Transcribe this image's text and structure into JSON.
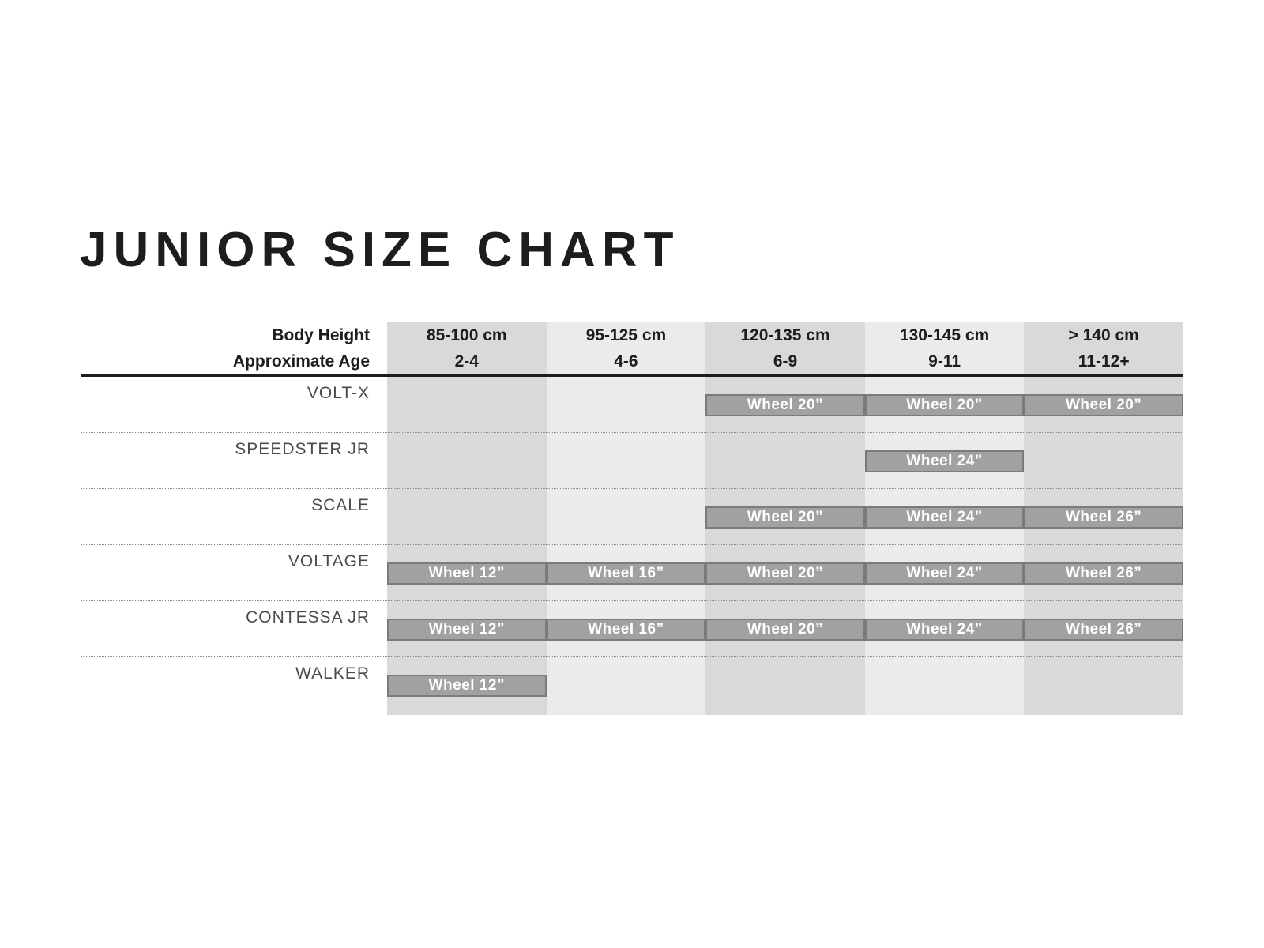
{
  "title": "JUNIOR SIZE CHART",
  "colors": {
    "column_band_dark": "#d9d9d9",
    "column_band_light": "#ebebeb",
    "bar_fill": "#a1a1a1",
    "bar_border": "#7b7b7b",
    "bar_text": "#ffffff",
    "heading_text": "#1d1d1b",
    "row_label_text": "#4b4b4b",
    "dotted_divider": "#8c8c8c"
  },
  "chart_data": {
    "type": "table",
    "title": "JUNIOR SIZE CHART",
    "header_row_labels": {
      "body_height": "Body Height",
      "approximate_age": "Approximate Age"
    },
    "columns": [
      {
        "height": "85-100 cm",
        "age": "2-4"
      },
      {
        "height": "95-125 cm",
        "age": "4-6"
      },
      {
        "height": "120-135 cm",
        "age": "6-9"
      },
      {
        "height": "130-145 cm",
        "age": "9-11"
      },
      {
        "height": "> 140 cm",
        "age": "11-12+"
      }
    ],
    "rows": [
      {
        "model": "VOLT-X",
        "cells": [
          null,
          null,
          "Wheel 20”",
          "Wheel 20”",
          "Wheel 20”"
        ]
      },
      {
        "model": "SPEEDSTER JR",
        "cells": [
          null,
          null,
          null,
          "Wheel 24”",
          null
        ]
      },
      {
        "model": "SCALE",
        "cells": [
          null,
          null,
          "Wheel 20”",
          "Wheel 24”",
          "Wheel 26”"
        ]
      },
      {
        "model": "VOLTAGE",
        "cells": [
          "Wheel 12”",
          "Wheel 16”",
          "Wheel 20”",
          "Wheel 24”",
          "Wheel 26”"
        ]
      },
      {
        "model": "CONTESSA JR",
        "cells": [
          "Wheel 12”",
          "Wheel 16”",
          "Wheel 20”",
          "Wheel 24”",
          "Wheel 26”"
        ]
      },
      {
        "model": "WALKER",
        "cells": [
          "Wheel 12”",
          null,
          null,
          null,
          null
        ]
      }
    ]
  }
}
